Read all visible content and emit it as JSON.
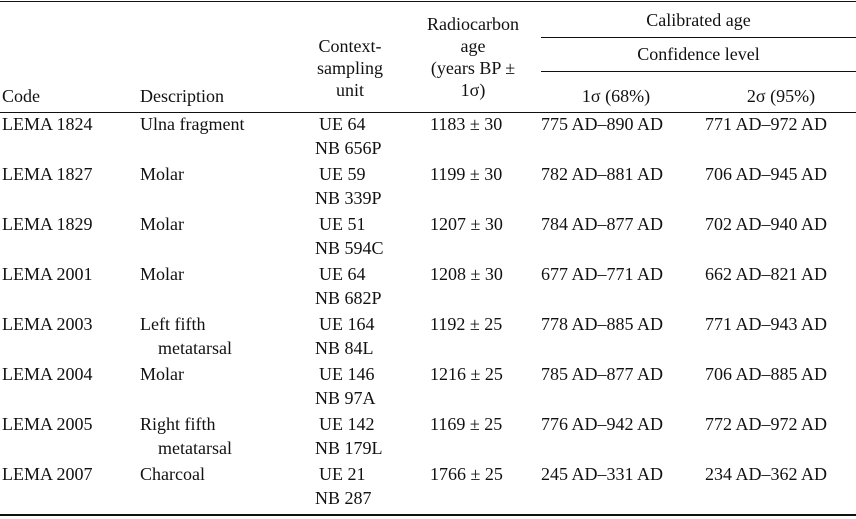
{
  "headers": {
    "code": "Code",
    "description": "Description",
    "context_line1": "Context-",
    "context_line2": "sampling",
    "context_line3": "unit",
    "radio_line1": "Radiocarbon",
    "radio_line2": "age",
    "radio_line3": "(years BP ±",
    "radio_line4": "1σ)",
    "calibrated": "Calibrated age",
    "confidence": "Confidence level",
    "sigma1": "1σ (68%)",
    "sigma2": "2σ (95%)"
  },
  "rows": [
    {
      "code": "LEMA 1824",
      "desc": "Ulna fragment",
      "desc2": "",
      "ue": "UE 64",
      "nb": "NB 656P",
      "age": "1183 ± 30",
      "s1": "775 AD–890 AD",
      "s2": "771 AD–972 AD"
    },
    {
      "code": "LEMA 1827",
      "desc": "Molar",
      "desc2": "",
      "ue": "UE 59",
      "nb": "NB 339P",
      "age": "1199 ± 30",
      "s1": "782 AD–881 AD",
      "s2": "706 AD–945 AD"
    },
    {
      "code": "LEMA 1829",
      "desc": "Molar",
      "desc2": "",
      "ue": "UE 51",
      "nb": "NB 594C",
      "age": "1207 ± 30",
      "s1": "784 AD–877 AD",
      "s2": "702 AD–940 AD"
    },
    {
      "code": "LEMA 2001",
      "desc": "Molar",
      "desc2": "",
      "ue": "UE 64",
      "nb": "NB 682P",
      "age": "1208 ± 30",
      "s1": "677 AD–771 AD",
      "s2": "662 AD–821 AD"
    },
    {
      "code": "LEMA 2003",
      "desc": "Left fifth",
      "desc2": "metatarsal",
      "ue": "UE 164",
      "nb": "NB 84L",
      "age": "1192 ± 25",
      "s1": "778 AD–885 AD",
      "s2": "771 AD–943 AD"
    },
    {
      "code": "LEMA 2004",
      "desc": "Molar",
      "desc2": "",
      "ue": "UE 146",
      "nb": "NB 97A",
      "age": "1216 ± 25",
      "s1": "785 AD–877 AD",
      "s2": "706 AD–885 AD"
    },
    {
      "code": "LEMA 2005",
      "desc": "Right fifth",
      "desc2": "metatarsal",
      "ue": "UE 142",
      "nb": "NB 179L",
      "age": "1169 ± 25",
      "s1": "776 AD–942 AD",
      "s2": "772 AD–972 AD"
    },
    {
      "code": "LEMA 2007",
      "desc": "Charcoal",
      "desc2": "",
      "ue": "UE 21",
      "nb": "NB 287",
      "age": "1766 ± 25",
      "s1": "245 AD–331 AD",
      "s2": "234 AD–362 AD"
    }
  ]
}
